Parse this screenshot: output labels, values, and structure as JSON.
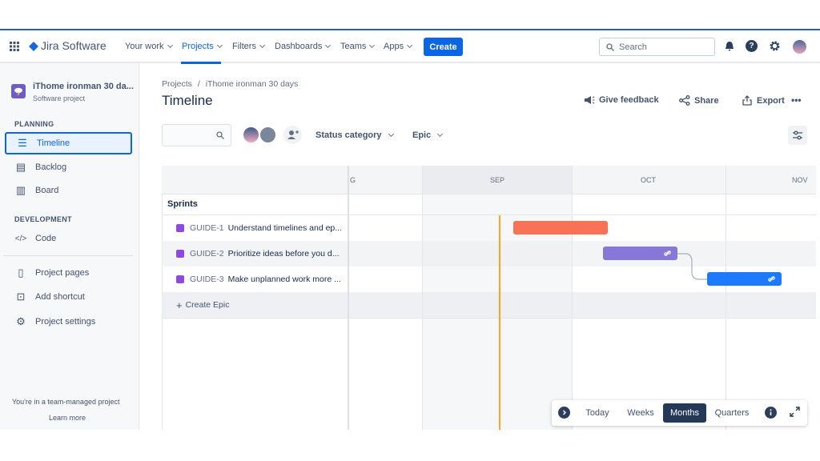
{
  "topnav": {
    "product": "Jira Software",
    "items": [
      "Your work",
      "Projects",
      "Filters",
      "Dashboards",
      "Teams",
      "Apps"
    ],
    "create": "Create",
    "search_placeholder": "Search"
  },
  "sidebar": {
    "project_name": "iThome ironman 30 da...",
    "project_type": "Software project",
    "planning": "PLANNING",
    "development": "DEVELOPMENT",
    "items": [
      "Timeline",
      "Backlog",
      "Board",
      "Code",
      "Project pages",
      "Add shortcut",
      "Project settings"
    ],
    "footer": "You're in a team-managed project",
    "learn_more": "Learn more"
  },
  "header": {
    "breadcrumb_root": "Projects",
    "breadcrumb_sep": "/",
    "breadcrumb_project": "iThome ironman 30 days",
    "title": "Timeline",
    "give_feedback": "Give feedback",
    "share": "Share",
    "export": "Export",
    "more": "•••"
  },
  "filters": {
    "status_category": "Status category",
    "epic": "Epic"
  },
  "timeline": {
    "months": [
      "G",
      "SEP",
      "OCT",
      "NOV"
    ],
    "sprints": "Sprints",
    "epics": [
      {
        "key": "GUIDE-1",
        "title": "Understand timelines and ep...",
        "color": "#f87256"
      },
      {
        "key": "GUIDE-2",
        "title": "Prioritize ideas before you d...",
        "color": "#8777d9"
      },
      {
        "key": "GUIDE-3",
        "title": "Make unplanned work more ...",
        "color": "#1d7afc"
      }
    ],
    "create_epic": "Create Epic",
    "today_color": "#f5a623"
  },
  "controls": {
    "today": "Today",
    "weeks": "Weeks",
    "months": "Months",
    "quarters": "Quarters",
    "selected": "Months"
  }
}
